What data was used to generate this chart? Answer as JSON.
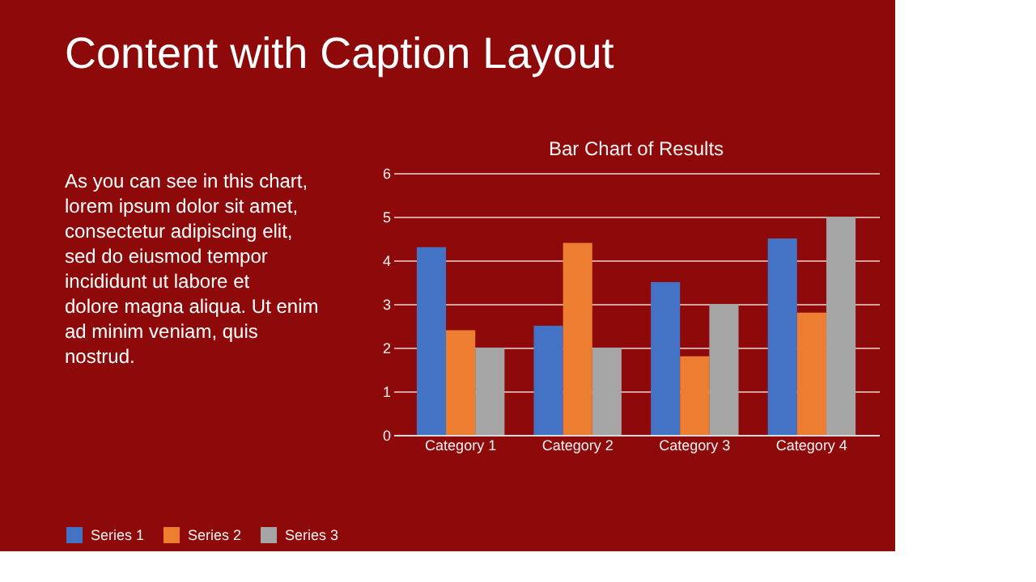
{
  "chart_data": {
    "type": "bar",
    "title": "Bar Chart of Results",
    "annotations": [
      "Content with Caption Layout",
      "As you can see in this chart, lorem ipsum dolor sit amet, consectetur adipiscing elit, sed do eiusmod tempor incididunt ut labore et dolore magna aliqua. Ut enim ad minim veniam, quis nostrud."
    ],
    "categories": [
      "Category 1",
      "Category 2",
      "Category 3",
      "Category 4"
    ],
    "series": [
      {
        "name": "Series 1",
        "color": "#4472c4",
        "values": [
          4.3,
          2.5,
          3.5,
          4.5
        ]
      },
      {
        "name": "Series 2",
        "color": "#ed7d31",
        "values": [
          2.4,
          4.4,
          1.8,
          2.8
        ]
      },
      {
        "name": "Series 3",
        "color": "#a5a5a5",
        "values": [
          2,
          2,
          3,
          5
        ]
      }
    ],
    "ylim": [
      0,
      6
    ],
    "yticks": [
      0,
      1,
      2,
      3,
      4,
      5,
      6
    ],
    "grid": "y",
    "legend": "bottom"
  }
}
